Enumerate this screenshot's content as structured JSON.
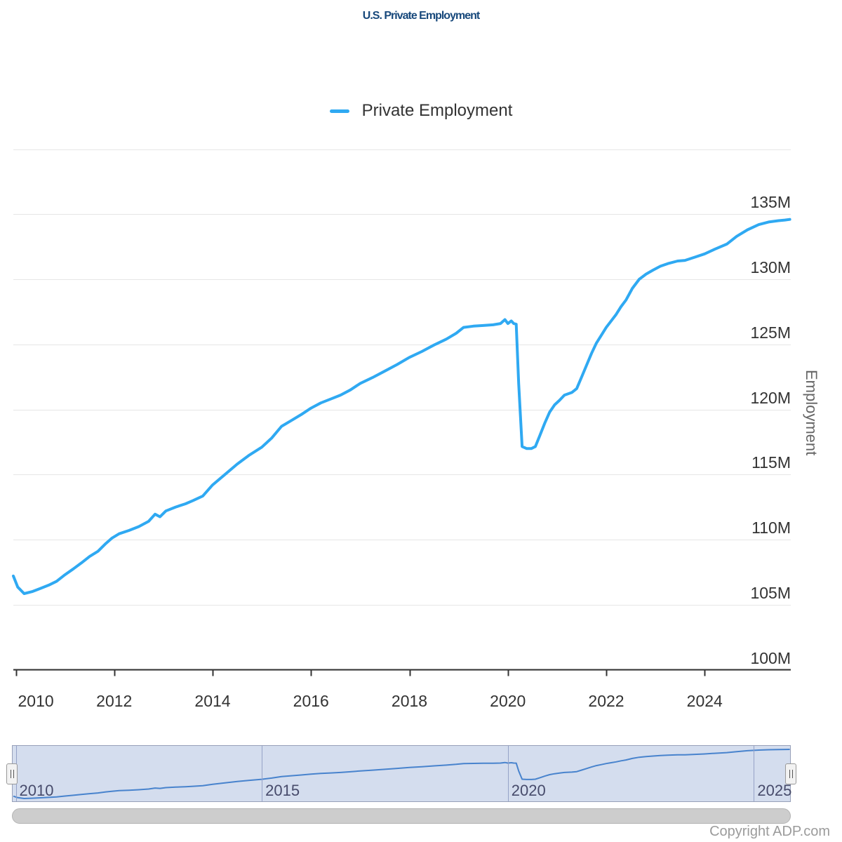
{
  "header": {
    "title": "U.S. Private Employment"
  },
  "legend": {
    "label": "Private Employment"
  },
  "y_axis": {
    "title": "Employment",
    "ticks": [
      {
        "label": "135M",
        "value": 135
      },
      {
        "label": "130M",
        "value": 130
      },
      {
        "label": "125M",
        "value": 125
      },
      {
        "label": "120M",
        "value": 120
      },
      {
        "label": "115M",
        "value": 115
      },
      {
        "label": "110M",
        "value": 110
      },
      {
        "label": "105M",
        "value": 105
      },
      {
        "label": "100M",
        "value": 100
      }
    ],
    "top_gridline_value": 140
  },
  "x_axis": {
    "ticks": [
      {
        "label": "2010",
        "value": 2010
      },
      {
        "label": "2012",
        "value": 2012
      },
      {
        "label": "2014",
        "value": 2014
      },
      {
        "label": "2016",
        "value": 2016
      },
      {
        "label": "2018",
        "value": 2018
      },
      {
        "label": "2020",
        "value": 2020
      },
      {
        "label": "2022",
        "value": 2022
      },
      {
        "label": "2024",
        "value": 2024
      }
    ]
  },
  "navigator": {
    "ticks": [
      {
        "label": "2010",
        "value": 2010
      },
      {
        "label": "2015",
        "value": 2015
      },
      {
        "label": "2020",
        "value": 2020
      },
      {
        "label": "2025",
        "value": 2025
      }
    ]
  },
  "footer": {
    "copyright": "Copyright ADP.com"
  },
  "colors": {
    "title": "#17487b",
    "line": "#2fa9f2",
    "grid": "#e6e6e6",
    "axis": "#333333",
    "nav_line": "#3e83d2",
    "nav_mask": "rgba(102,133,194,0.28)",
    "nav_outline": "#97a0b9",
    "nav_grid": "#a8aec9"
  },
  "chart_data": {
    "type": "line",
    "title": "U.S. Private Employment",
    "xlabel": "",
    "ylabel": "Employment",
    "y_unit": "millions of jobs (M)",
    "ylim": [
      100,
      140
    ],
    "y_tick_interval": 5,
    "x_range": [
      2009.95,
      2025.75
    ],
    "grid": "horizontal",
    "legend_position": "top-center",
    "navigator": true,
    "series": [
      {
        "name": "Private Employment",
        "color": "#2fa9f2",
        "points": [
          [
            2009.95,
            107.2
          ],
          [
            2010.04,
            106.35
          ],
          [
            2010.17,
            105.85
          ],
          [
            2010.33,
            106.0
          ],
          [
            2010.5,
            106.25
          ],
          [
            2010.67,
            106.5
          ],
          [
            2010.83,
            106.8
          ],
          [
            2011.0,
            107.3
          ],
          [
            2011.17,
            107.75
          ],
          [
            2011.33,
            108.2
          ],
          [
            2011.5,
            108.7
          ],
          [
            2011.67,
            109.1
          ],
          [
            2011.83,
            109.7
          ],
          [
            2011.95,
            110.1
          ],
          [
            2012.1,
            110.45
          ],
          [
            2012.3,
            110.7
          ],
          [
            2012.5,
            111.0
          ],
          [
            2012.7,
            111.4
          ],
          [
            2012.83,
            111.95
          ],
          [
            2012.93,
            111.75
          ],
          [
            2013.05,
            112.2
          ],
          [
            2013.25,
            112.5
          ],
          [
            2013.45,
            112.75
          ],
          [
            2013.6,
            113.0
          ],
          [
            2013.8,
            113.35
          ],
          [
            2014.0,
            114.2
          ],
          [
            2014.25,
            115.0
          ],
          [
            2014.5,
            115.8
          ],
          [
            2014.75,
            116.5
          ],
          [
            2015.0,
            117.1
          ],
          [
            2015.2,
            117.8
          ],
          [
            2015.4,
            118.7
          ],
          [
            2015.6,
            119.15
          ],
          [
            2015.8,
            119.6
          ],
          [
            2016.0,
            120.1
          ],
          [
            2016.2,
            120.5
          ],
          [
            2016.4,
            120.8
          ],
          [
            2016.6,
            121.1
          ],
          [
            2016.8,
            121.5
          ],
          [
            2017.0,
            122.0
          ],
          [
            2017.25,
            122.45
          ],
          [
            2017.5,
            122.95
          ],
          [
            2017.75,
            123.45
          ],
          [
            2018.0,
            124.0
          ],
          [
            2018.25,
            124.45
          ],
          [
            2018.5,
            124.95
          ],
          [
            2018.75,
            125.4
          ],
          [
            2018.95,
            125.85
          ],
          [
            2019.1,
            126.3
          ],
          [
            2019.3,
            126.4
          ],
          [
            2019.5,
            126.45
          ],
          [
            2019.7,
            126.5
          ],
          [
            2019.85,
            126.6
          ],
          [
            2019.94,
            126.9
          ],
          [
            2020.0,
            126.6
          ],
          [
            2020.07,
            126.8
          ],
          [
            2020.12,
            126.6
          ],
          [
            2020.17,
            126.55
          ],
          [
            2020.22,
            122.0
          ],
          [
            2020.29,
            117.15
          ],
          [
            2020.38,
            117.0
          ],
          [
            2020.48,
            117.0
          ],
          [
            2020.56,
            117.15
          ],
          [
            2020.65,
            118.0
          ],
          [
            2020.75,
            118.95
          ],
          [
            2020.85,
            119.8
          ],
          [
            2020.95,
            120.35
          ],
          [
            2021.05,
            120.7
          ],
          [
            2021.15,
            121.1
          ],
          [
            2021.3,
            121.3
          ],
          [
            2021.4,
            121.6
          ],
          [
            2021.5,
            122.5
          ],
          [
            2021.6,
            123.4
          ],
          [
            2021.7,
            124.3
          ],
          [
            2021.8,
            125.1
          ],
          [
            2021.9,
            125.7
          ],
          [
            2022.0,
            126.3
          ],
          [
            2022.1,
            126.8
          ],
          [
            2022.2,
            127.3
          ],
          [
            2022.3,
            127.9
          ],
          [
            2022.4,
            128.4
          ],
          [
            2022.53,
            129.3
          ],
          [
            2022.67,
            130.0
          ],
          [
            2022.81,
            130.4
          ],
          [
            2022.95,
            130.7
          ],
          [
            2023.1,
            131.0
          ],
          [
            2023.25,
            131.2
          ],
          [
            2023.45,
            131.4
          ],
          [
            2023.6,
            131.45
          ],
          [
            2023.8,
            131.7
          ],
          [
            2024.0,
            131.95
          ],
          [
            2024.2,
            132.3
          ],
          [
            2024.45,
            132.7
          ],
          [
            2024.65,
            133.3
          ],
          [
            2024.87,
            133.8
          ],
          [
            2025.1,
            134.2
          ],
          [
            2025.3,
            134.4
          ],
          [
            2025.5,
            134.5
          ],
          [
            2025.63,
            134.55
          ],
          [
            2025.73,
            134.6
          ]
        ]
      }
    ]
  }
}
